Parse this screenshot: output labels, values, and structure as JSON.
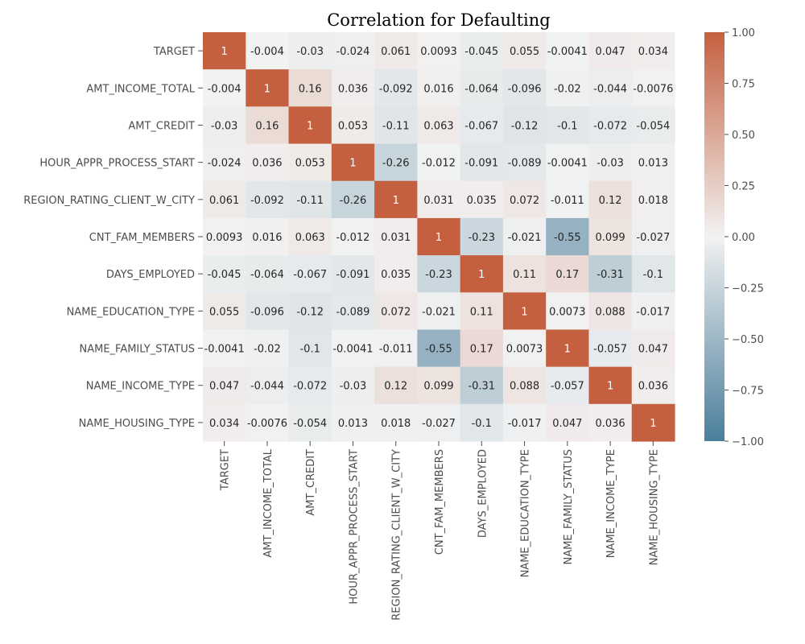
{
  "chart_data": {
    "type": "heatmap",
    "title": "Correlation for Defaulting",
    "xlabel": "",
    "ylabel": "",
    "row_labels": [
      "TARGET",
      "AMT_INCOME_TOTAL",
      "AMT_CREDIT",
      "HOUR_APPR_PROCESS_START",
      "REGION_RATING_CLIENT_W_CITY",
      "CNT_FAM_MEMBERS",
      "DAYS_EMPLOYED",
      "NAME_EDUCATION_TYPE",
      "NAME_FAMILY_STATUS",
      "NAME_INCOME_TYPE",
      "NAME_HOUSING_TYPE"
    ],
    "col_labels": [
      "TARGET",
      "AMT_INCOME_TOTAL",
      "AMT_CREDIT",
      "HOUR_APPR_PROCESS_START",
      "REGION_RATING_CLIENT_W_CITY",
      "CNT_FAM_MEMBERS",
      "DAYS_EMPLOYED",
      "NAME_EDUCATION_TYPE",
      "NAME_FAMILY_STATUS",
      "NAME_INCOME_TYPE",
      "NAME_HOUSING_TYPE"
    ],
    "value_labels": [
      [
        "1",
        "-0.004",
        "-0.03",
        "-0.024",
        "0.061",
        "0.0093",
        "-0.045",
        "0.055",
        "-0.0041",
        "0.047",
        "0.034"
      ],
      [
        "-0.004",
        "1",
        "0.16",
        "0.036",
        "-0.092",
        "0.016",
        "-0.064",
        "-0.096",
        "-0.02",
        "-0.044",
        "-0.0076"
      ],
      [
        "-0.03",
        "0.16",
        "1",
        "0.053",
        "-0.11",
        "0.063",
        "-0.067",
        "-0.12",
        "-0.1",
        "-0.072",
        "-0.054"
      ],
      [
        "-0.024",
        "0.036",
        "0.053",
        "1",
        "-0.26",
        "-0.012",
        "-0.091",
        "-0.089",
        "-0.0041",
        "-0.03",
        "0.013"
      ],
      [
        "0.061",
        "-0.092",
        "-0.11",
        "-0.26",
        "1",
        "0.031",
        "0.035",
        "0.072",
        "-0.011",
        "0.12",
        "0.018"
      ],
      [
        "0.0093",
        "0.016",
        "0.063",
        "-0.012",
        "0.031",
        "1",
        "-0.23",
        "-0.021",
        "-0.55",
        "0.099",
        "-0.027"
      ],
      [
        "-0.045",
        "-0.064",
        "-0.067",
        "-0.091",
        "0.035",
        "-0.23",
        "1",
        "0.11",
        "0.17",
        "-0.31",
        "-0.1"
      ],
      [
        "0.055",
        "-0.096",
        "-0.12",
        "-0.089",
        "0.072",
        "-0.021",
        "0.11",
        "1",
        "0.0073",
        "0.088",
        "-0.017"
      ],
      [
        "-0.0041",
        "-0.02",
        "-0.1",
        "-0.0041",
        "-0.011",
        "-0.55",
        "0.17",
        "0.0073",
        "1",
        "-0.057",
        "0.047"
      ],
      [
        "0.047",
        "-0.044",
        "-0.072",
        "-0.03",
        "0.12",
        "0.099",
        "-0.31",
        "0.088",
        "-0.057",
        "1",
        "0.036"
      ],
      [
        "0.034",
        "-0.0076",
        "-0.054",
        "0.013",
        "0.018",
        "-0.027",
        "-0.1",
        "-0.017",
        "0.047",
        "0.036",
        "1"
      ]
    ],
    "vmin": -1.0,
    "vmax": 1.0,
    "colorbar": {
      "ticks": [
        1.0,
        0.75,
        0.5,
        0.25,
        0.0,
        -0.25,
        -0.5,
        -0.75,
        -1.0
      ],
      "tick_labels": [
        "1.00",
        "0.75",
        "0.50",
        "0.25",
        "0.00",
        "−0.25",
        "−0.50",
        "−0.75",
        "−1.00"
      ]
    },
    "colors": {
      "negative": "#4a7e9b",
      "center": "#f2f2f2",
      "positive": "#c4603f",
      "text_dark": "#262626",
      "text_light": "#ffffff",
      "tick_text": "#4d4d4d"
    }
  }
}
